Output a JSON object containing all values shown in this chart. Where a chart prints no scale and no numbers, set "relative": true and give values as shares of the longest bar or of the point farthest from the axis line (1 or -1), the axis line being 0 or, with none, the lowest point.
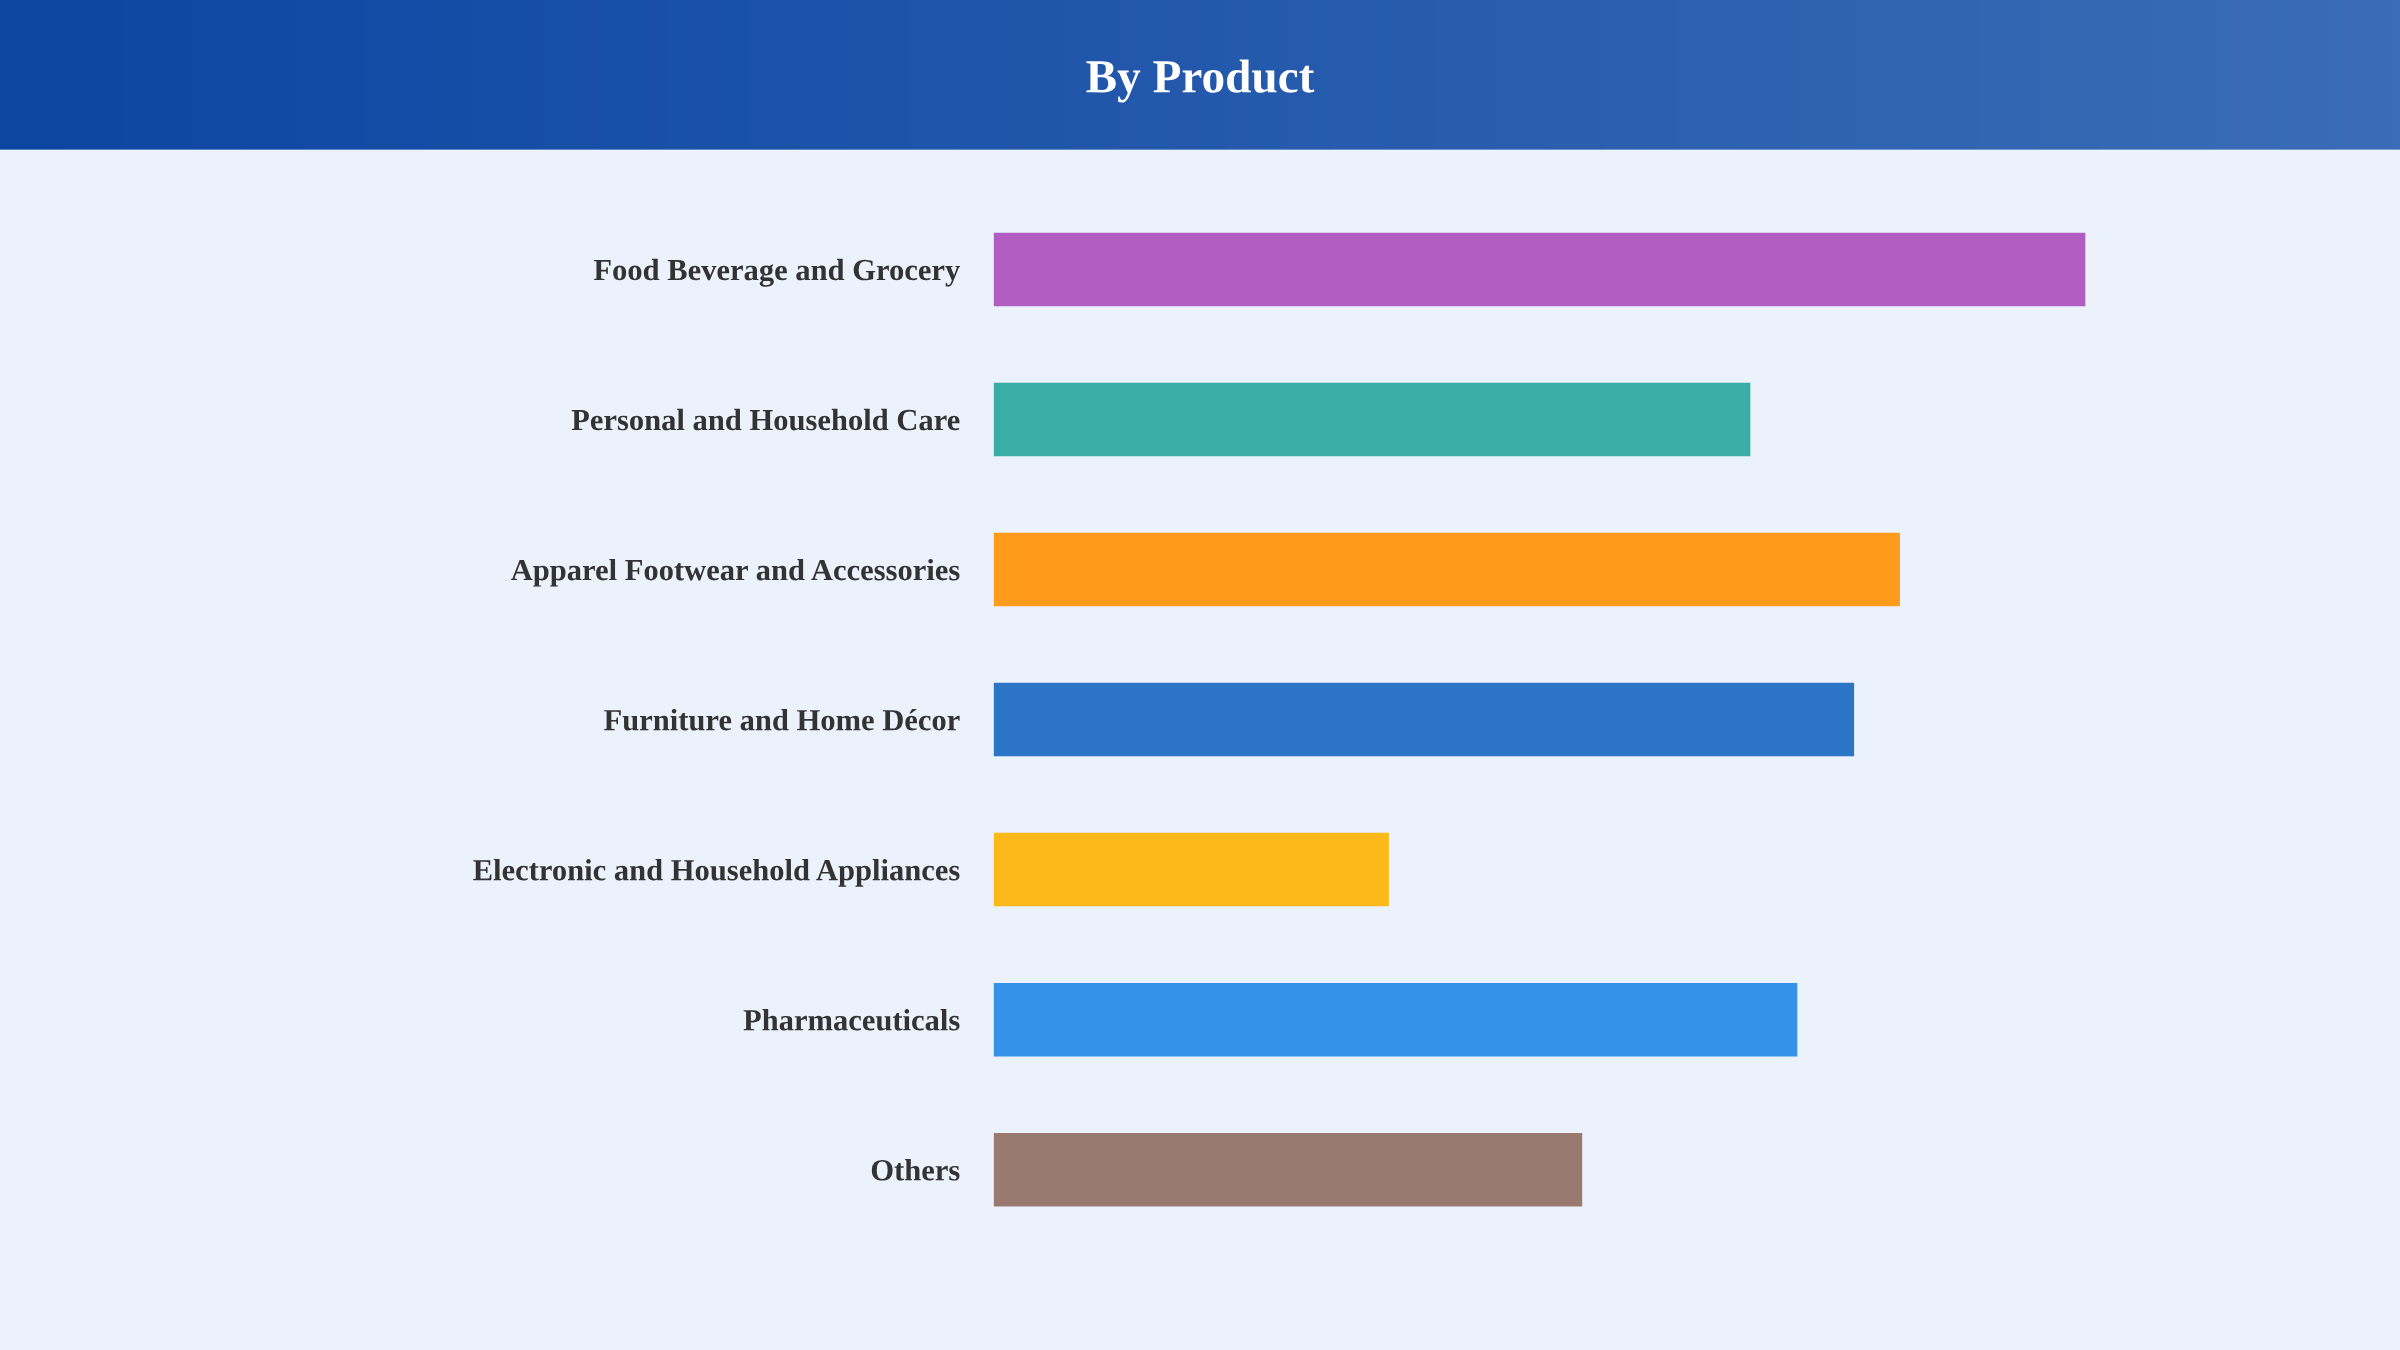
{
  "chart_data": {
    "type": "bar",
    "orientation": "horizontal",
    "relative": true,
    "title": "By Product",
    "categories": [
      "Food Beverage and Grocery",
      "Personal and Household Care",
      "Apparel Footwear and Accessories",
      "Furniture and Home Décor",
      "Electronic and Household Appliances",
      "Pharmaceuticals",
      "Others"
    ],
    "values": [
      1,
      0.693,
      0.83,
      0.788,
      0.362,
      0.736,
      0.539
    ],
    "colors": [
      "#b05cc0",
      "#3aaea6",
      "#ff9a1a",
      "#2b74c6",
      "#fdb81a",
      "#3592e6",
      "#9a7a70"
    ],
    "grid": false,
    "legend": false
  }
}
